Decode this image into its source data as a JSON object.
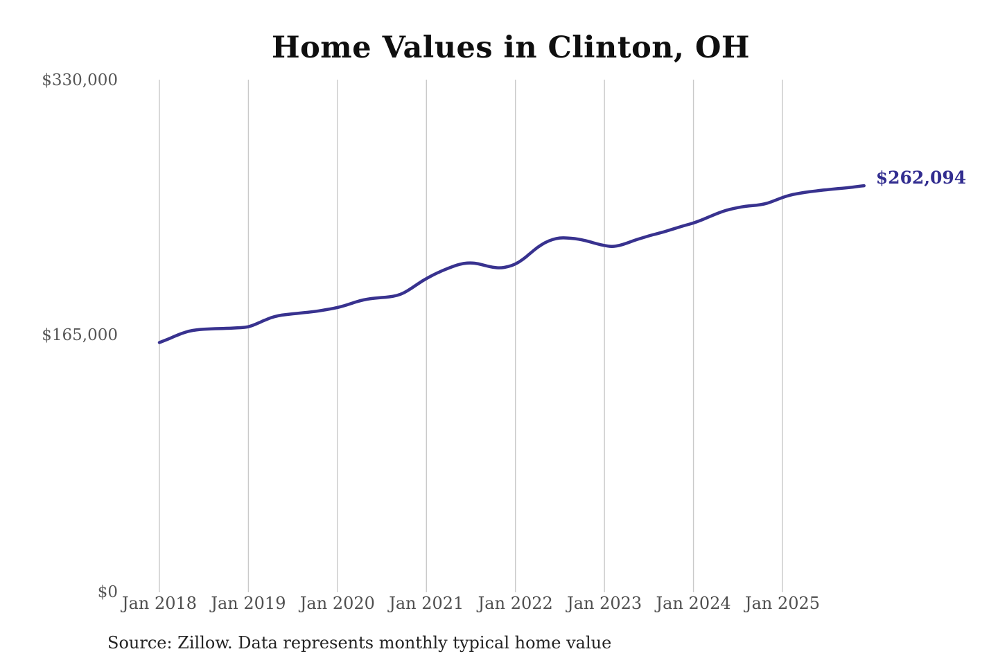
{
  "chart_data": {
    "type": "line",
    "title": "Home Values in Clinton, OH",
    "source": "Source: Zillow. Data represents monthly typical home value",
    "x_start_month": "Jan 2018",
    "x_end_month": "Dec 2025",
    "frequency": "monthly",
    "x_ticks": [
      "Jan 2018",
      "Jan 2019",
      "Jan 2020",
      "Jan 2021",
      "Jan 2022",
      "Jan 2023",
      "Jan 2024",
      "Jan 2025"
    ],
    "y_ticks": [
      {
        "label": "$330,000",
        "value": 330000
      },
      {
        "label": "$165,000",
        "value": 165000
      },
      {
        "label": "$0",
        "value": 0
      }
    ],
    "ylim": [
      0,
      330000
    ],
    "grid": "vertical-only",
    "legend": "none",
    "series": [
      {
        "name": "Typical home value",
        "color": "#38328f",
        "latest_value": 262094,
        "latest_label": "$262,094",
        "values": [
          161000,
          162800,
          164900,
          166900,
          168400,
          169200,
          169600,
          169800,
          170000,
          170100,
          170300,
          170600,
          171000,
          172800,
          175000,
          177000,
          178300,
          179000,
          179500,
          180000,
          180500,
          181000,
          181800,
          182600,
          183500,
          184800,
          186400,
          187900,
          189000,
          189600,
          190000,
          190400,
          191200,
          193000,
          196000,
          199300,
          202300,
          204800,
          207000,
          209000,
          210800,
          212000,
          212400,
          211800,
          210500,
          209400,
          209000,
          209900,
          211500,
          214500,
          218500,
          222500,
          225500,
          227500,
          228500,
          228400,
          228000,
          227200,
          226000,
          224600,
          223500,
          222800,
          223500,
          225000,
          226800,
          228300,
          229800,
          231000,
          232300,
          233800,
          235300,
          236700,
          238000,
          239800,
          241800,
          243800,
          245600,
          247000,
          248000,
          248800,
          249300,
          249800,
          250800,
          252600,
          254500,
          256000,
          257000,
          257800,
          258400,
          259000,
          259500,
          260000,
          260400,
          260900,
          261500,
          262094
        ]
      }
    ]
  },
  "colors": {
    "line": "#38328f",
    "end_label": "#322d90",
    "gridline": "#c9c9c9",
    "axis_text": "#565656",
    "title_text": "#0f0f0f",
    "source_text": "#242424",
    "background": "#ffffff"
  }
}
